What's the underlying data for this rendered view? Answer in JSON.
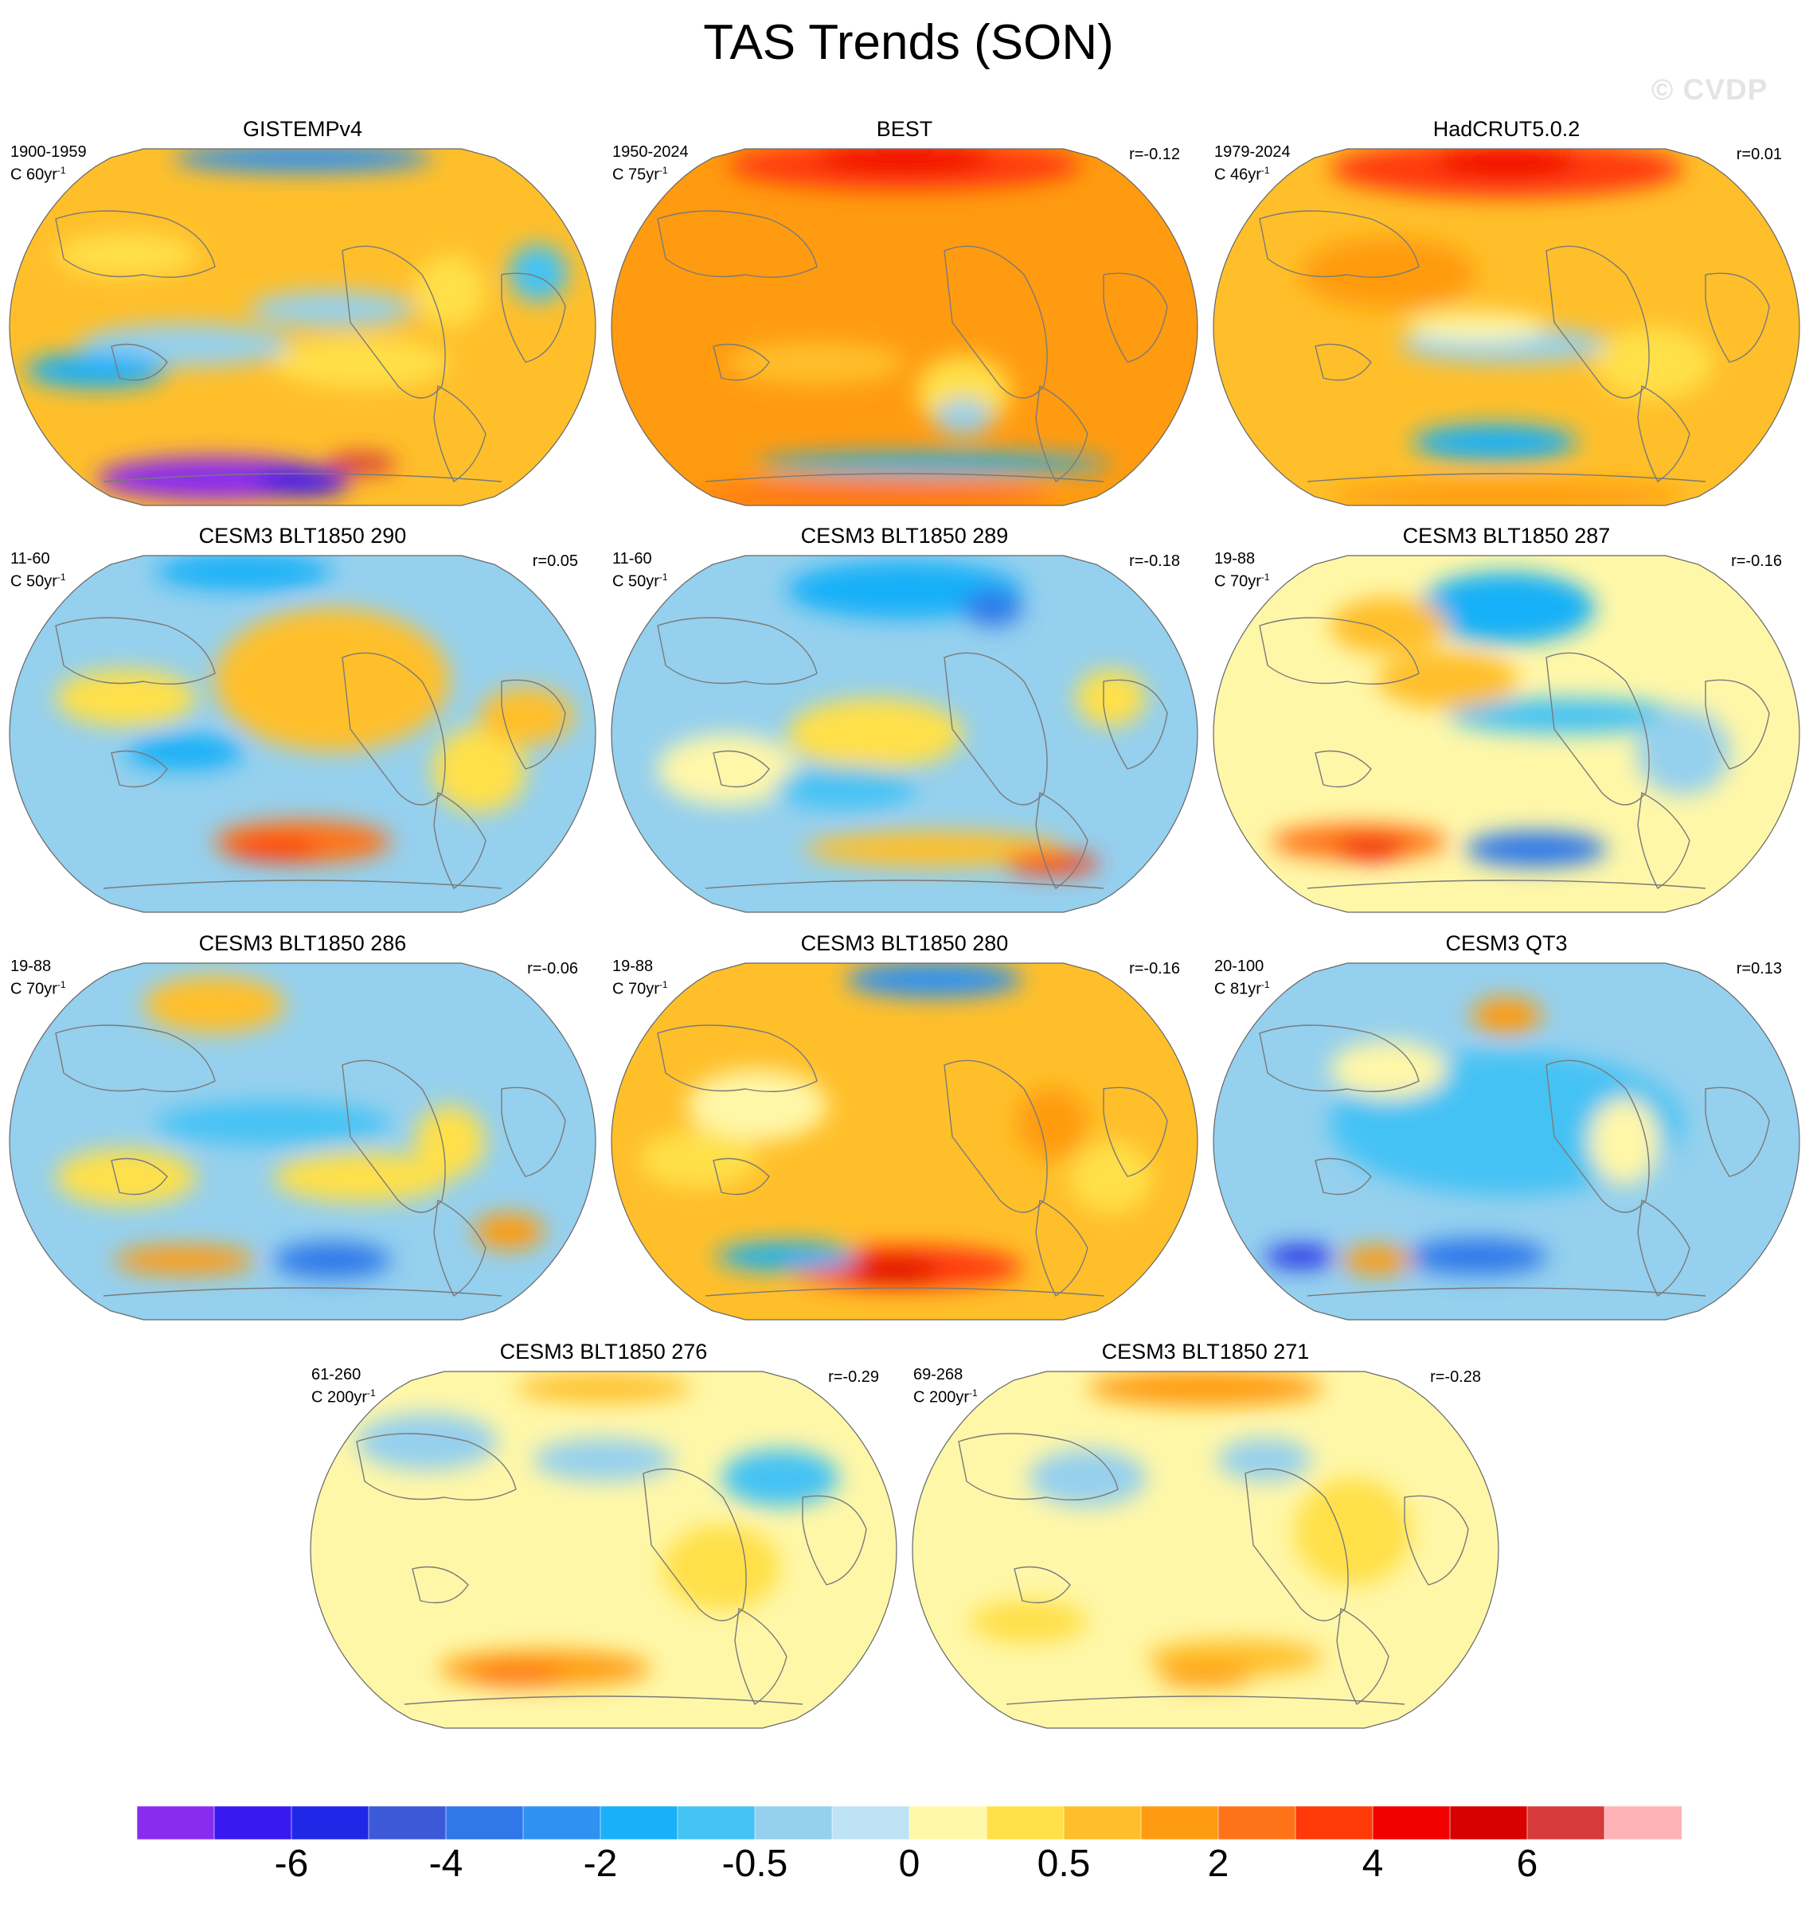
{
  "title": "TAS Trends (SON)",
  "watermark": "© CVDP",
  "panels": [
    {
      "title": "GISTEMPv4",
      "period": "1900-1959",
      "length_prefix": "C 60yr",
      "length_sup": "-1",
      "corr": "",
      "pattern": "gistemp"
    },
    {
      "title": "BEST",
      "period": "1950-2024",
      "length_prefix": "C 75yr",
      "length_sup": "-1",
      "corr": "r=-0.12",
      "pattern": "best"
    },
    {
      "title": "HadCRUT5.0.2",
      "period": "1979-2024",
      "length_prefix": "C 46yr",
      "length_sup": "-1",
      "corr": "r=0.01",
      "pattern": "hadcrut"
    },
    {
      "title": "CESM3 BLT1850 290",
      "period": "11-60",
      "length_prefix": "C 50yr",
      "length_sup": "-1",
      "corr": "r=0.05",
      "pattern": "m290"
    },
    {
      "title": "CESM3 BLT1850 289",
      "period": "11-60",
      "length_prefix": "C 50yr",
      "length_sup": "-1",
      "corr": "r=-0.18",
      "pattern": "m289"
    },
    {
      "title": "CESM3 BLT1850 287",
      "period": "19-88",
      "length_prefix": "C 70yr",
      "length_sup": "-1",
      "corr": "r=-0.16",
      "pattern": "m287"
    },
    {
      "title": "CESM3 BLT1850 286",
      "period": "19-88",
      "length_prefix": "C 70yr",
      "length_sup": "-1",
      "corr": "r=-0.06",
      "pattern": "m286"
    },
    {
      "title": "CESM3 BLT1850 280",
      "period": "19-88",
      "length_prefix": "C 70yr",
      "length_sup": "-1",
      "corr": "r=-0.16",
      "pattern": "m280"
    },
    {
      "title": "CESM3 QT3",
      "period": "20-100",
      "length_prefix": "C 81yr",
      "length_sup": "-1",
      "corr": "r=0.13",
      "pattern": "qt3"
    },
    {
      "title": "CESM3 BLT1850 276",
      "period": "61-260",
      "length_prefix": "C 200yr",
      "length_sup": "-1",
      "corr": "r=-0.29",
      "pattern": "m276"
    },
    {
      "title": "CESM3 BLT1850 271",
      "period": "69-268",
      "length_prefix": "C 200yr",
      "length_sup": "-1",
      "corr": "r=-0.28",
      "pattern": "m271"
    }
  ],
  "colorbar": {
    "colors": [
      "#8a2cf0",
      "#3a18f2",
      "#1e28e6",
      "#3c5ad8",
      "#2f78ea",
      "#2f92f2",
      "#18b0f8",
      "#45c2f4",
      "#95d0ee",
      "#bde3f4",
      "#fff7a8",
      "#ffe048",
      "#ffbf2a",
      "#ff9b10",
      "#ff7318",
      "#ff3a08",
      "#f00000",
      "#d80000",
      "#d63a3a",
      "#ffb2b6"
    ],
    "tick_labels": [
      "-6",
      "-4",
      "-2",
      "-0.5",
      "0",
      "0.5",
      "2",
      "4",
      "6"
    ]
  },
  "chart_data": {
    "type": "heatmap",
    "title": "TAS Trends (SON)",
    "projection": "Robinson (Pacific-centered global map)",
    "variable": "surface air temperature trend",
    "colorbar_levels": [
      "-6",
      "-4",
      "-2",
      "-0.5",
      "0",
      "0.5",
      "2",
      "4",
      "6"
    ],
    "panels": [
      {
        "name": "GISTEMPv4",
        "period": "1900-1959",
        "length": "60yr",
        "r": null
      },
      {
        "name": "BEST",
        "period": "1950-2024",
        "length": "75yr",
        "r": -0.12
      },
      {
        "name": "HadCRUT5.0.2",
        "period": "1979-2024",
        "length": "46yr",
        "r": 0.01
      },
      {
        "name": "CESM3 BLT1850 290",
        "period": "11-60",
        "length": "50yr",
        "r": 0.05
      },
      {
        "name": "CESM3 BLT1850 289",
        "period": "11-60",
        "length": "50yr",
        "r": -0.18
      },
      {
        "name": "CESM3 BLT1850 287",
        "period": "19-88",
        "length": "70yr",
        "r": -0.16
      },
      {
        "name": "CESM3 BLT1850 286",
        "period": "19-88",
        "length": "70yr",
        "r": -0.06
      },
      {
        "name": "CESM3 BLT1850 280",
        "period": "19-88",
        "length": "70yr",
        "r": -0.16
      },
      {
        "name": "CESM3 QT3",
        "period": "20-100",
        "length": "81yr",
        "r": 0.13
      },
      {
        "name": "CESM3 BLT1850 276",
        "period": "61-260",
        "length": "200yr",
        "r": -0.29
      },
      {
        "name": "CESM3 BLT1850 271",
        "period": "69-268",
        "length": "200yr",
        "r": -0.28
      }
    ]
  }
}
